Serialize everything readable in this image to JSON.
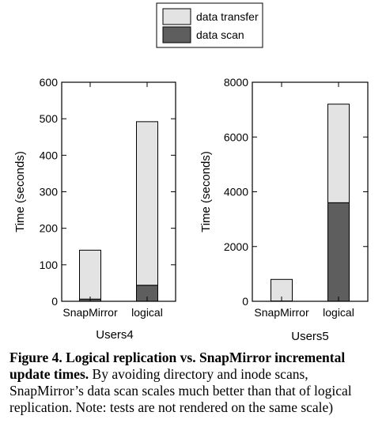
{
  "colors": {
    "transfer": "#e3e3e3",
    "scan": "#5e5e5e",
    "axis": "#000000"
  },
  "legend": {
    "items": [
      {
        "label": "data transfer",
        "color": "#e3e3e3"
      },
      {
        "label": "data scan",
        "color": "#5e5e5e"
      }
    ]
  },
  "chart_data": [
    {
      "type": "bar",
      "stacked": true,
      "xlabel": "Users4",
      "ylabel": "Time (seconds)",
      "ylim": [
        0,
        600
      ],
      "yticks": [
        0,
        100,
        200,
        300,
        400,
        500,
        600
      ],
      "categories": [
        "SnapMirror",
        "logical"
      ],
      "series": [
        {
          "name": "data scan",
          "values": [
            6,
            44
          ]
        },
        {
          "name": "data transfer",
          "values": [
            134,
            448
          ]
        }
      ]
    },
    {
      "type": "bar",
      "stacked": true,
      "xlabel": "Users5",
      "ylabel": "Time (seconds)",
      "ylim": [
        0,
        8000
      ],
      "yticks": [
        0,
        2000,
        4000,
        6000,
        8000
      ],
      "categories": [
        "SnapMirror",
        "logical"
      ],
      "series": [
        {
          "name": "data scan",
          "values": [
            10,
            3600
          ]
        },
        {
          "name": "data transfer",
          "values": [
            790,
            3600
          ]
        }
      ]
    }
  ],
  "caption": {
    "bold": "Figure 4. Logical replication vs. SnapMirror incremental update times.",
    "text": " By avoiding directory and inode scans, SnapMirror’s data scan scales much better than that of logical replication. Note: tests are not rendered on the same scale)"
  }
}
